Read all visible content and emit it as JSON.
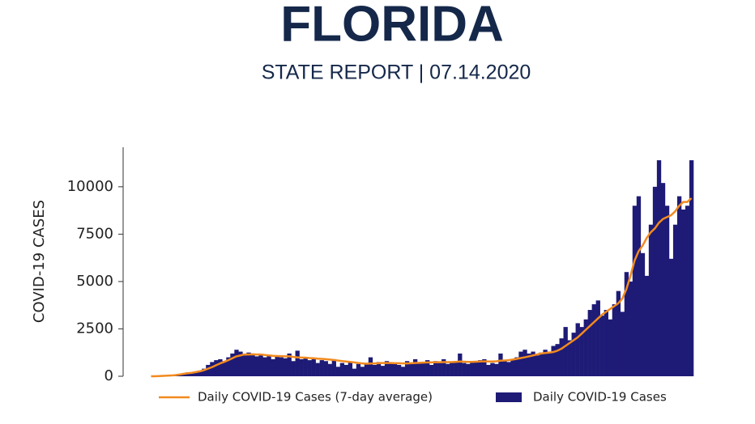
{
  "chart_data": {
    "type": "bar",
    "title": "FLORIDA",
    "subtitle": "STATE REPORT | 07.14.2020",
    "y_label": "COVID-19 CASES",
    "categories": [
      null,
      null,
      null,
      null,
      null,
      null,
      null,
      null,
      null,
      null,
      null,
      null,
      null,
      null,
      null,
      null,
      null,
      null,
      null,
      null,
      null,
      null,
      null,
      null,
      null,
      null,
      null,
      null,
      null,
      null,
      null,
      null,
      null,
      null,
      null,
      null,
      null,
      null,
      null,
      null,
      null,
      null,
      null,
      null,
      null,
      null,
      null,
      null,
      null,
      null,
      null,
      null,
      null,
      null,
      null,
      null,
      null,
      null,
      null,
      null,
      null,
      null,
      null,
      null,
      null,
      null,
      null,
      null,
      null,
      null,
      null,
      null,
      null,
      null,
      null,
      null,
      null,
      null,
      null,
      null,
      null,
      null,
      null,
      null,
      null,
      null,
      null,
      null,
      null,
      null,
      null,
      null,
      null,
      null,
      null,
      null,
      null,
      null,
      null,
      null,
      null,
      null,
      null,
      null,
      null,
      null,
      null,
      null,
      null,
      null,
      null,
      null,
      null,
      null,
      null,
      null,
      null,
      null,
      null,
      null,
      null,
      null,
      null,
      null,
      null,
      null,
      null,
      null,
      null,
      null,
      null,
      null,
      null,
      null
    ],
    "series": [
      {
        "name": "Daily COVID-19 Cases (7-day average)",
        "type": "line",
        "color": "#f28a1e",
        "values": [
          0,
          0,
          10,
          20,
          30,
          40,
          60,
          90,
          130,
          160,
          180,
          220,
          260,
          320,
          400,
          480,
          580,
          680,
          760,
          850,
          950,
          1050,
          1100,
          1150,
          1150,
          1160,
          1150,
          1150,
          1120,
          1100,
          1080,
          1070,
          1060,
          1050,
          1050,
          1020,
          1000,
          990,
          980,
          960,
          950,
          930,
          920,
          900,
          880,
          860,
          830,
          800,
          780,
          760,
          730,
          700,
          680,
          660,
          670,
          680,
          690,
          700,
          700,
          700,
          690,
          690,
          680,
          680,
          690,
          700,
          710,
          720,
          730,
          730,
          740,
          740,
          750,
          750,
          750,
          760,
          780,
          770,
          760,
          760,
          770,
          780,
          790,
          780,
          780,
          790,
          820,
          830,
          850,
          880,
          920,
          960,
          1000,
          1050,
          1100,
          1150,
          1200,
          1230,
          1250,
          1280,
          1350,
          1450,
          1600,
          1750,
          1900,
          2050,
          2250,
          2450,
          2650,
          2850,
          3050,
          3250,
          3400,
          3550,
          3700,
          3850,
          4100,
          4600,
          5300,
          6100,
          6600,
          6900,
          7300,
          7600,
          7800,
          8100,
          8300,
          8400,
          8500,
          8700,
          9000,
          9200,
          9200,
          9400
        ]
      },
      {
        "name": "Daily COVID-19 Cases",
        "type": "bar",
        "color": "#1e1b76",
        "values": [
          0,
          0,
          10,
          20,
          30,
          50,
          80,
          120,
          150,
          200,
          180,
          250,
          300,
          400,
          600,
          750,
          850,
          900,
          800,
          1000,
          1200,
          1400,
          1300,
          1100,
          1250,
          1200,
          1050,
          1150,
          1000,
          1100,
          900,
          1050,
          1000,
          950,
          1200,
          800,
          1350,
          900,
          950,
          850,
          900,
          700,
          850,
          800,
          650,
          900,
          500,
          700,
          600,
          750,
          400,
          650,
          500,
          700,
          1000,
          600,
          750,
          550,
          800,
          700,
          650,
          600,
          500,
          800,
          650,
          900,
          700,
          750,
          850,
          600,
          800,
          700,
          900,
          650,
          750,
          800,
          1200,
          700,
          650,
          800,
          750,
          850,
          900,
          600,
          700,
          650,
          1200,
          800,
          750,
          900,
          1000,
          1300,
          1400,
          1200,
          1300,
          1100,
          1250,
          1400,
          1300,
          1600,
          1700,
          2000,
          2600,
          1900,
          2300,
          2800,
          2600,
          3000,
          3500,
          3800,
          4000,
          3200,
          3500,
          3000,
          3800,
          4500,
          3400,
          5500,
          5000,
          9000,
          9500,
          6500,
          5300,
          8000,
          10000,
          11400,
          10200,
          9000,
          6200,
          8000,
          9500,
          8800,
          9000,
          11400
        ]
      }
    ],
    "ylim": [
      0,
      12000
    ],
    "yticks": [
      0,
      2500,
      5000,
      7500,
      10000
    ]
  }
}
